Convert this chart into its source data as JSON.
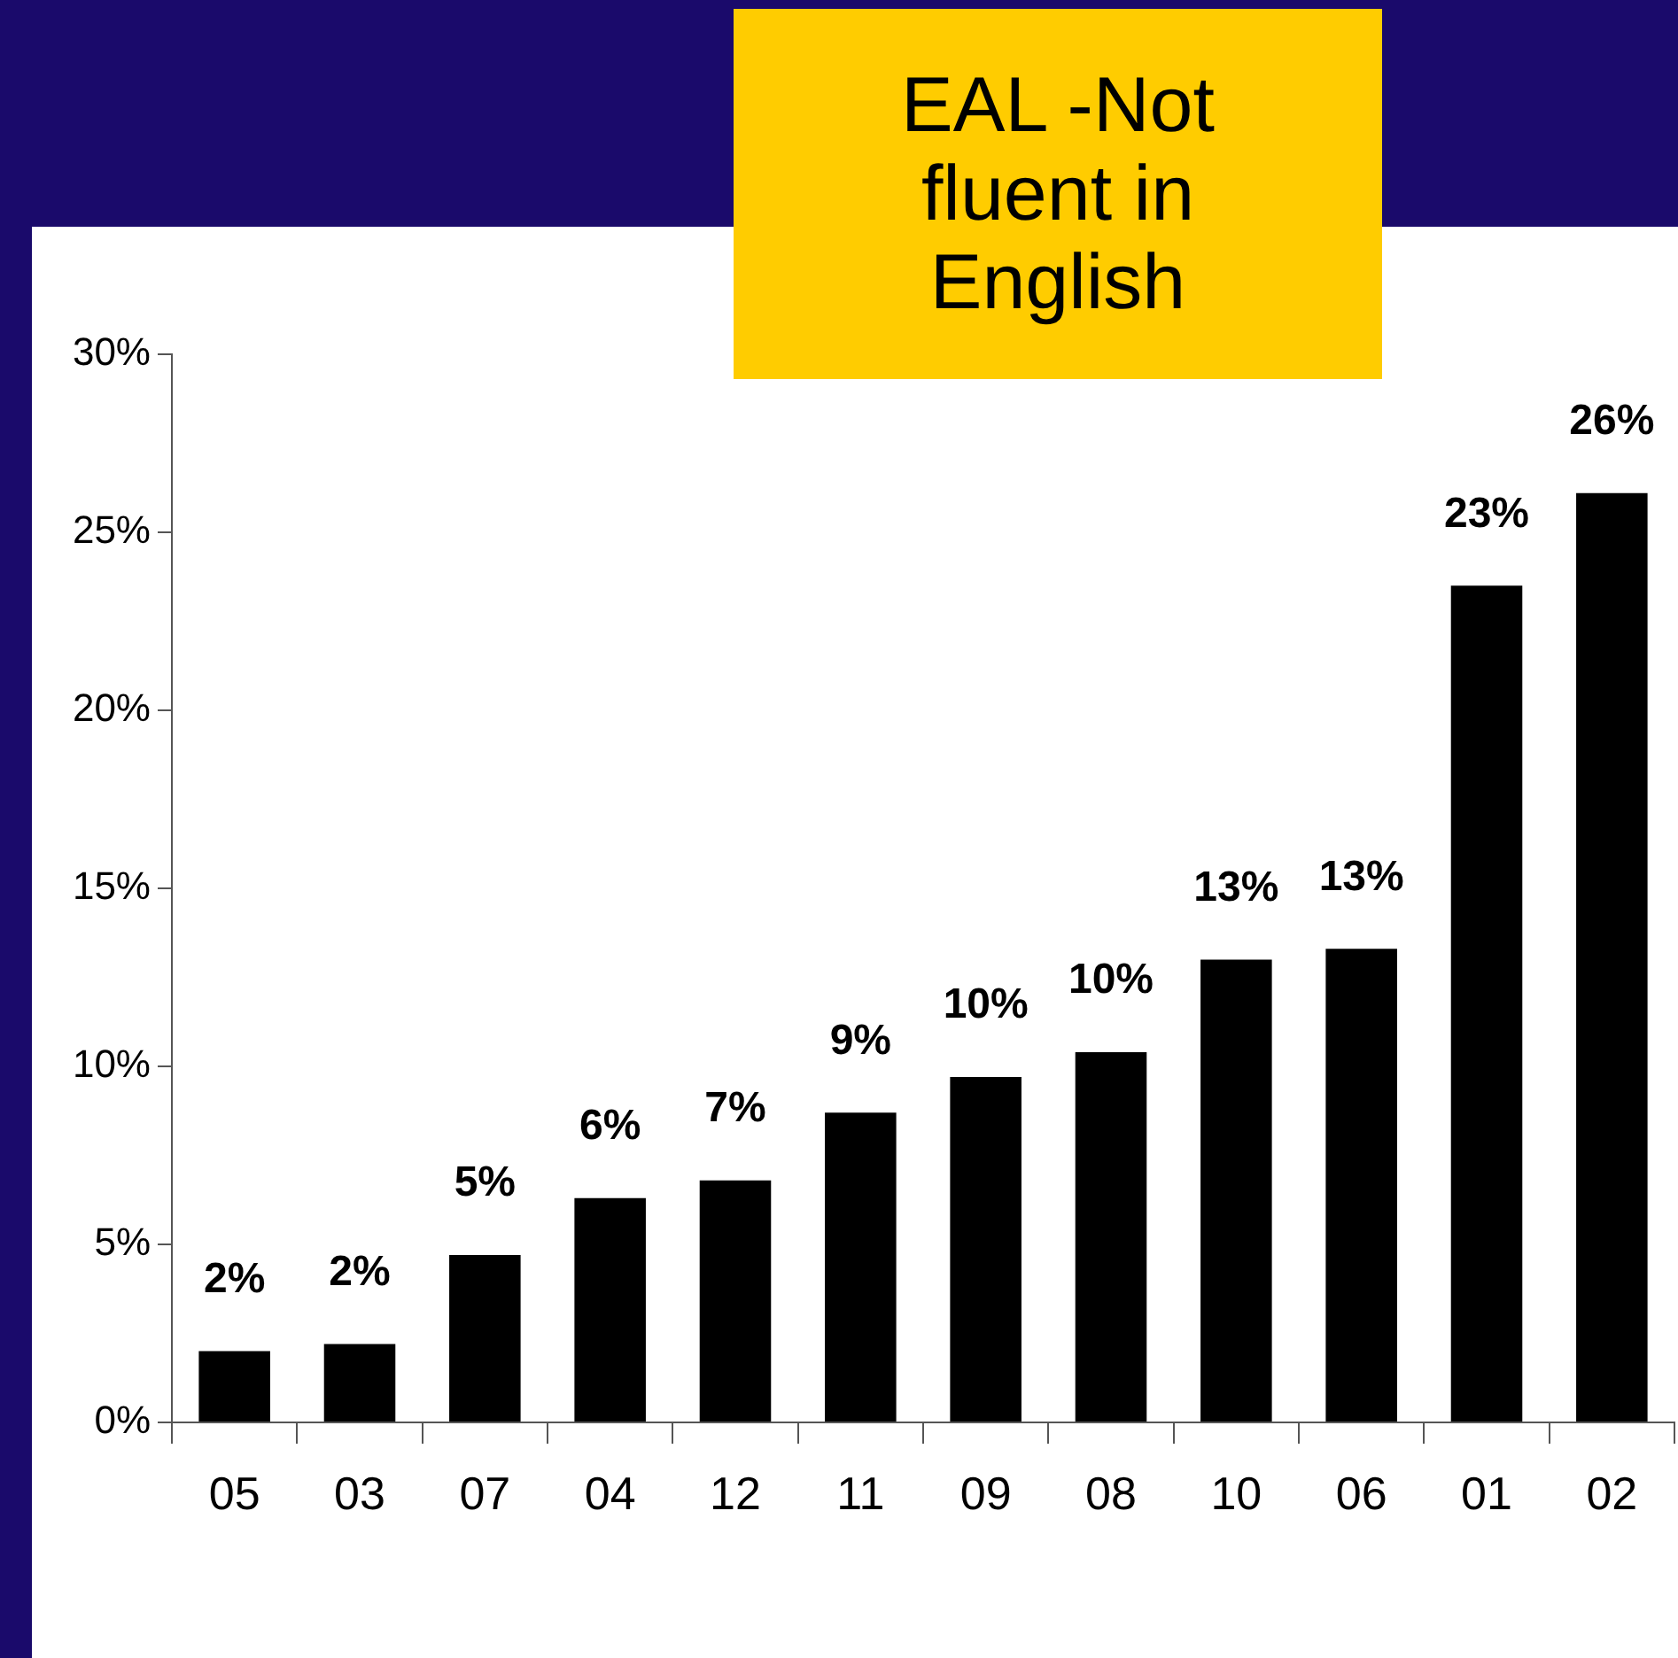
{
  "chart_data": {
    "type": "bar",
    "title": "EAL -Not fluent in English",
    "categories": [
      "05",
      "03",
      "07",
      "04",
      "12",
      "11",
      "09",
      "08",
      "10",
      "06",
      "01",
      "02"
    ],
    "values": [
      2.0,
      2.2,
      4.7,
      6.3,
      6.8,
      8.7,
      9.7,
      10.4,
      13.0,
      13.3,
      23.5,
      26.1
    ],
    "value_labels": [
      "2%",
      "2%",
      "5%",
      "6%",
      "7%",
      "9%",
      "10%",
      "10%",
      "13%",
      "13%",
      "23%",
      "26%"
    ],
    "color": "#000000",
    "ylim": [
      0,
      30
    ],
    "yticks": [
      {
        "value": 0,
        "label": "0%"
      },
      {
        "value": 5,
        "label": "5%"
      },
      {
        "value": 10,
        "label": "10%"
      },
      {
        "value": 15,
        "label": "15%"
      },
      {
        "value": 20,
        "label": "20%"
      },
      {
        "value": 25,
        "label": "25%"
      },
      {
        "value": 30,
        "label": "30%"
      }
    ],
    "grid": false,
    "legend": false
  }
}
